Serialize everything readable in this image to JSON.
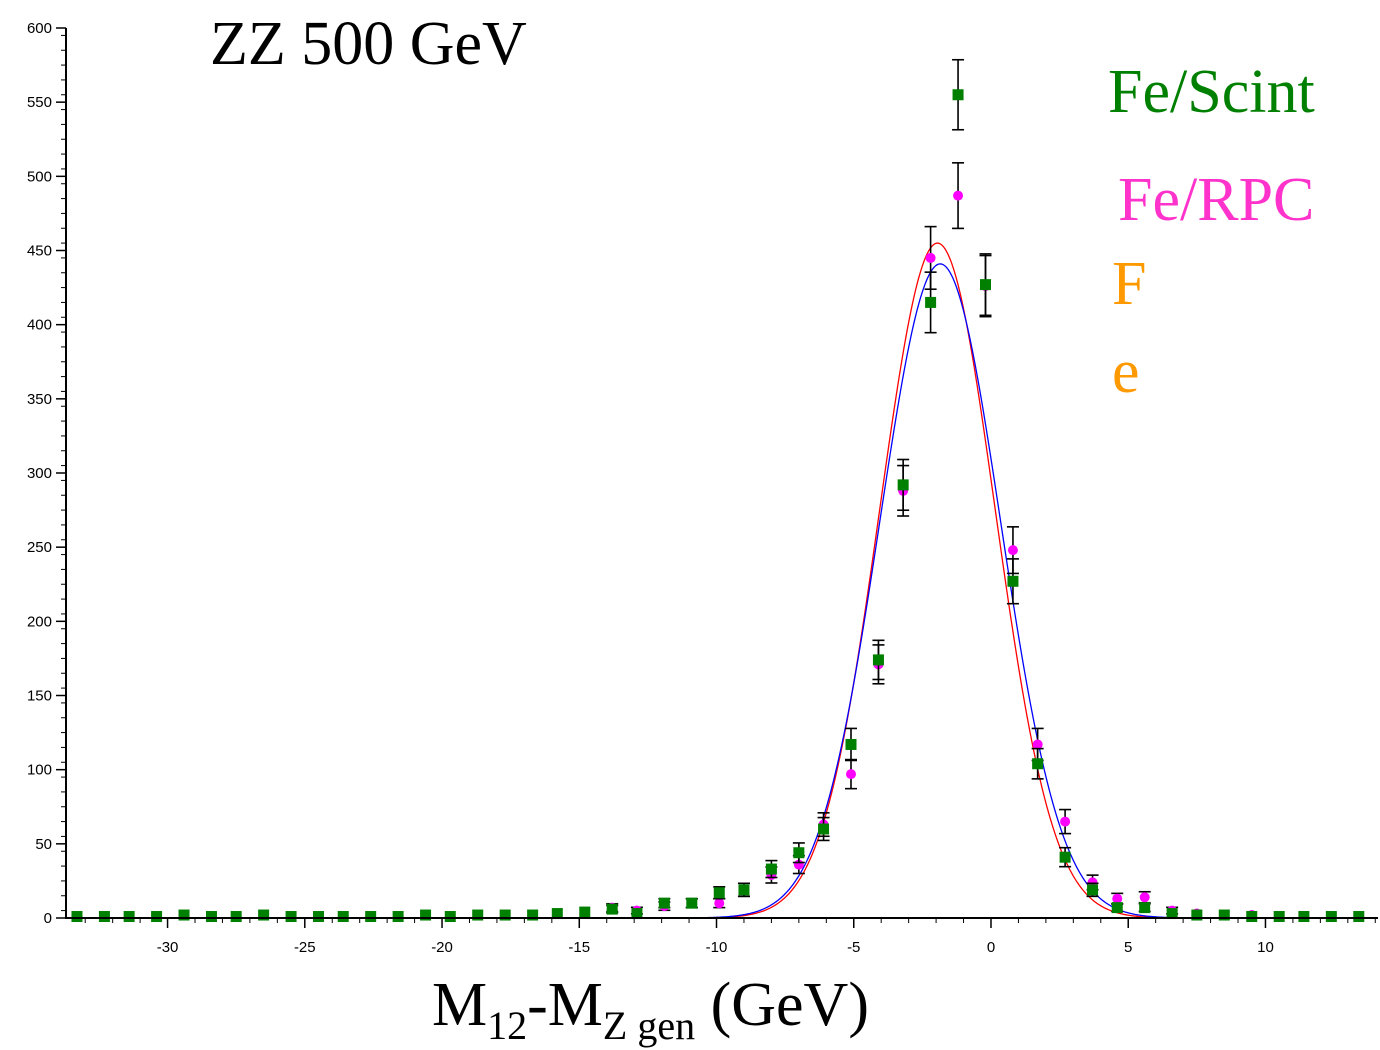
{
  "chart_data": {
    "type": "scatter",
    "title": "ZZ 500 GeV",
    "xlabel": {
      "main": "M",
      "sub1": "12",
      "mid": "-M",
      "sub2": "Z gen",
      "unit": " (GeV)"
    },
    "ylabel": "",
    "xlim": [
      -33.7,
      14.1
    ],
    "ylim": [
      0,
      600
    ],
    "xticks": [
      -30,
      -25,
      -20,
      -15,
      -10,
      -5,
      0,
      5,
      10
    ],
    "yticks": [
      0,
      50,
      100,
      150,
      200,
      250,
      300,
      350,
      400,
      450,
      500,
      550,
      600
    ],
    "grid": false,
    "legend": [
      "Fe/Scint",
      "Fe/RPC",
      "F",
      "e"
    ],
    "series": [
      {
        "name": "Fe/Scint",
        "marker": "square",
        "color": "#008000",
        "x": [
          -33.3,
          -32.3,
          -31.4,
          -30.4,
          -29.4,
          -28.4,
          -27.5,
          -26.5,
          -25.5,
          -24.5,
          -23.6,
          -22.6,
          -21.6,
          -20.6,
          -19.7,
          -18.7,
          -17.7,
          -16.7,
          -15.8,
          -14.8,
          -13.8,
          -12.9,
          -11.9,
          -10.9,
          -9.9,
          -9.0,
          -8.0,
          -7.0,
          -6.1,
          -5.1,
          -4.1,
          -3.2,
          -2.2,
          -1.2,
          -0.2,
          0.8,
          1.7,
          2.7,
          3.7,
          4.6,
          5.6,
          6.6,
          7.5,
          8.5,
          9.5,
          10.5,
          11.4,
          12.4,
          13.4
        ],
        "y": [
          1,
          1,
          1,
          1,
          2,
          1,
          1,
          2,
          1,
          1,
          1,
          1,
          1,
          2,
          1,
          2,
          2,
          2,
          3,
          4,
          6,
          3,
          10,
          10,
          17,
          19,
          33,
          44,
          60,
          117,
          174,
          292,
          415,
          555,
          427,
          227,
          104,
          41,
          19,
          7,
          7,
          3,
          2,
          2,
          1,
          1,
          1,
          1,
          1
        ],
        "err": [
          0.3,
          0.3,
          0.3,
          0.3,
          0.5,
          0.3,
          0.3,
          0.5,
          0.3,
          0.3,
          0.3,
          0.3,
          0.3,
          0.5,
          0.3,
          0.5,
          0.5,
          0.5,
          1,
          2,
          2.5,
          1.5,
          3,
          3,
          4,
          4.4,
          5.7,
          6.6,
          7.7,
          10.8,
          13.2,
          17.1,
          20.4,
          23.6,
          20.7,
          15.1,
          10.2,
          6.4,
          4.4,
          2.6,
          2.6,
          1.7,
          1.4,
          1.4,
          1,
          1,
          1,
          1,
          1
        ]
      },
      {
        "name": "Fe/RPC",
        "marker": "circle",
        "color": "#ff00ff",
        "x": [
          -33.3,
          -32.3,
          -31.4,
          -30.4,
          -29.4,
          -28.4,
          -27.5,
          -26.5,
          -25.5,
          -24.5,
          -23.6,
          -22.6,
          -21.6,
          -20.6,
          -19.7,
          -18.7,
          -17.7,
          -16.7,
          -15.8,
          -14.8,
          -13.8,
          -12.9,
          -11.9,
          -10.9,
          -9.9,
          -9.0,
          -8.0,
          -7.0,
          -6.1,
          -5.1,
          -4.1,
          -3.2,
          -2.2,
          -1.2,
          -0.2,
          0.8,
          1.7,
          2.7,
          3.7,
          4.6,
          5.6,
          6.6,
          7.5,
          8.5,
          9.5,
          10.5,
          11.4,
          12.4,
          13.4
        ],
        "y": [
          1,
          1,
          1,
          1,
          2,
          1,
          1,
          2,
          1,
          1,
          1,
          1,
          1,
          2,
          1,
          2,
          2,
          2,
          3,
          4,
          7,
          5,
          8,
          10,
          10,
          19,
          29,
          36,
          63,
          97,
          171,
          288,
          445,
          487,
          426,
          248,
          117,
          65,
          24,
          13,
          14,
          5,
          3,
          2,
          2,
          1,
          1,
          1,
          1
        ],
        "err": [
          0.3,
          0.3,
          0.3,
          0.3,
          0.5,
          0.3,
          0.3,
          0.5,
          0.3,
          0.3,
          0.3,
          0.3,
          0.3,
          0.5,
          0.3,
          0.5,
          0.5,
          0.5,
          1,
          2,
          2.6,
          2.2,
          2.8,
          3,
          3,
          4.4,
          5.4,
          6,
          7.9,
          9.8,
          13.1,
          17,
          21.1,
          22.1,
          20.6,
          15.7,
          10.8,
          8.1,
          4.9,
          3.6,
          3.7,
          2.2,
          1.7,
          1.4,
          1.4,
          1,
          1,
          1,
          1
        ]
      }
    ],
    "fits": [
      {
        "color": "#ff0000",
        "form": "gaussian",
        "mean": -1.95,
        "sigma": 2.1,
        "amplitude": 455
      },
      {
        "color": "#0000ff",
        "form": "gaussian",
        "mean": -1.85,
        "sigma": 2.2,
        "amplitude": 441
      }
    ],
    "label_colors": {
      "Fe/Scint": "#008000",
      "Fe/RPC": "#ff33cc",
      "F": "#ff9900",
      "e": "#ff9900"
    }
  }
}
